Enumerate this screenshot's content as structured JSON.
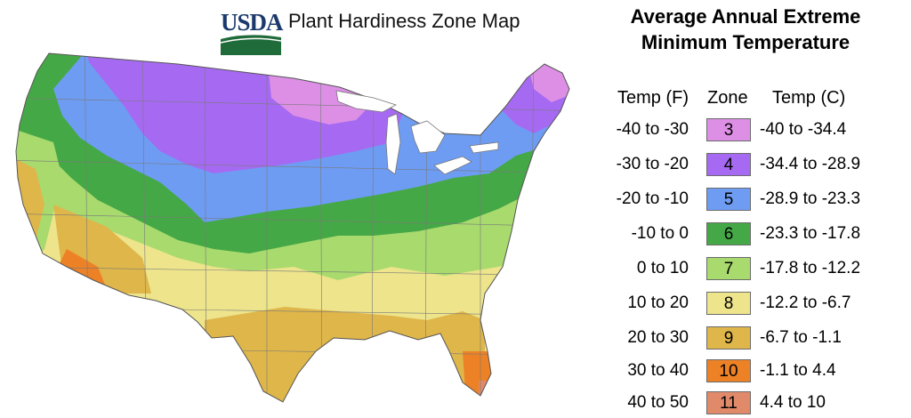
{
  "header": {
    "logo_text": "USDA",
    "map_title": "Plant Hardiness Zone Map"
  },
  "legend": {
    "title_line1": "Average Annual Extreme",
    "title_line2": "Minimum Temperature",
    "col_temp_f": "Temp (F)",
    "col_zone": "Zone",
    "col_temp_c": "Temp (C)",
    "rows": [
      {
        "temp_f": "-40 to -30",
        "zone": "3",
        "temp_c": "-40 to -34.4",
        "color": "#dd8fe6"
      },
      {
        "temp_f": "-30 to -20",
        "zone": "4",
        "temp_c": "-34.4 to -28.9",
        "color": "#a66af2"
      },
      {
        "temp_f": "-20 to -10",
        "zone": "5",
        "temp_c": "-28.9 to -23.3",
        "color": "#6e9cf3"
      },
      {
        "temp_f": "-10 to 0",
        "zone": "6",
        "temp_c": "-23.3 to -17.8",
        "color": "#45a846"
      },
      {
        "temp_f": "0 to 10",
        "zone": "7",
        "temp_c": "-17.8 to -12.2",
        "color": "#a8da6e"
      },
      {
        "temp_f": "10 to 20",
        "zone": "8",
        "temp_c": "-12.2 to -6.7",
        "color": "#ede48c"
      },
      {
        "temp_f": "20 to 30",
        "zone": "9",
        "temp_c": "-6.7 to -1.1",
        "color": "#dfb64a"
      },
      {
        "temp_f": "30 to 40",
        "zone": "10",
        "temp_c": "-1.1 to 4.4",
        "color": "#ed8126"
      },
      {
        "temp_f": "40 to 50",
        "zone": "11",
        "temp_c": "4.4 to 10",
        "color": "#e08a6a"
      }
    ]
  }
}
